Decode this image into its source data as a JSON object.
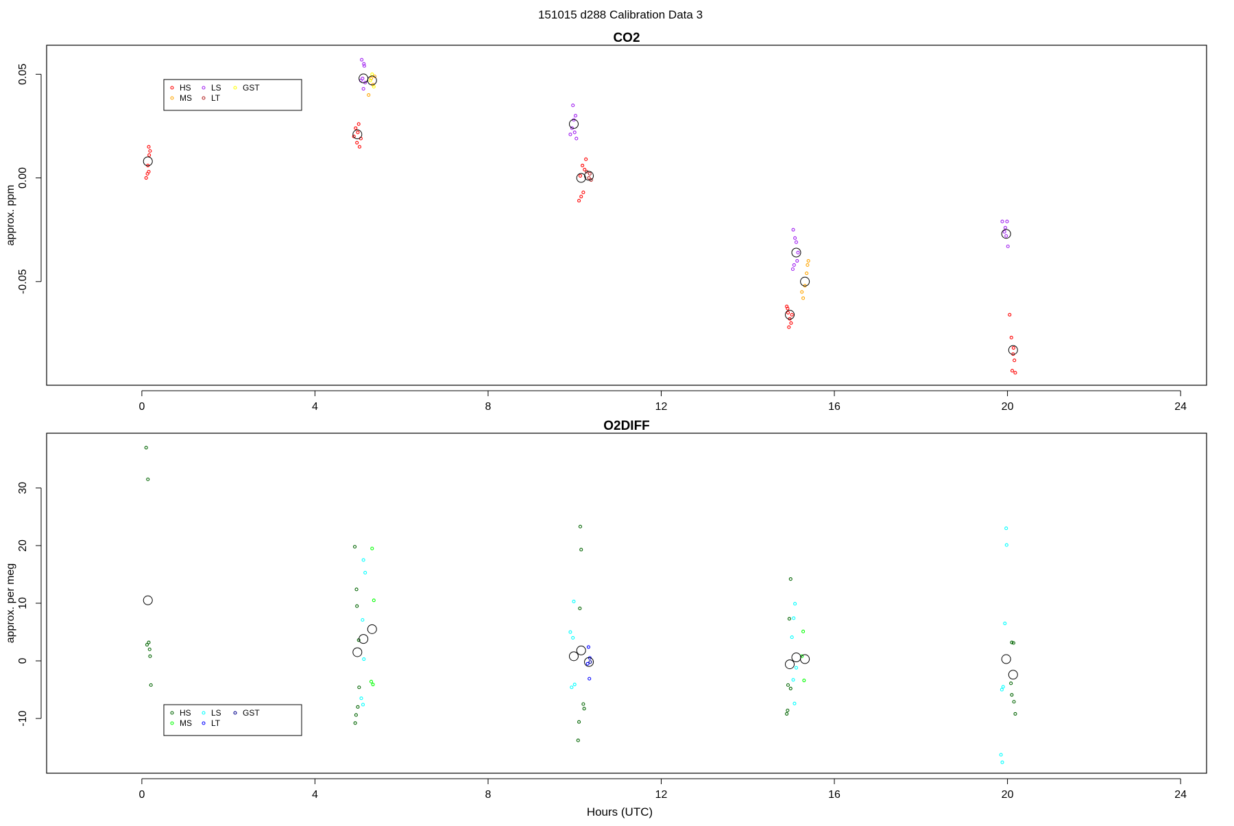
{
  "page_title": "151015   d288   Calibration Data 3",
  "x_axis_label": "Hours (UTC)",
  "chart_data": [
    {
      "type": "scatter",
      "title": "CO2",
      "ylabel": "approx. ppm",
      "xlabel": "",
      "xlim": [
        -2.2,
        24.6
      ],
      "ylim": [
        -0.1,
        0.064
      ],
      "xticks": [
        0,
        4,
        8,
        12,
        16,
        20,
        24
      ],
      "yticks": [
        -0.05,
        0.0,
        0.05
      ],
      "ytick_labels": [
        "-0.05",
        "0.00",
        "0.05"
      ],
      "grid": false,
      "legend_position": "top-left",
      "legend": [
        {
          "label": "HS",
          "color": "#ff0000"
        },
        {
          "label": "MS",
          "color": "#ffa500"
        },
        {
          "label": "LS",
          "color": "#a020f0"
        },
        {
          "label": "LT",
          "color": "#b22222"
        },
        {
          "label": "GST",
          "color": "#ffff00"
        }
      ],
      "series": [
        {
          "name": "HS",
          "color": "#ff0000",
          "points": [
            [
              0.1,
              0.0
            ],
            [
              0.13,
              0.002
            ],
            [
              0.16,
              0.003
            ],
            [
              0.14,
              0.006
            ],
            [
              0.17,
              0.011
            ],
            [
              0.19,
              0.013
            ],
            [
              0.16,
              0.015
            ],
            [
              4.9,
              0.02
            ],
            [
              4.94,
              0.024
            ],
            [
              5.01,
              0.026
            ],
            [
              4.97,
              0.017
            ],
            [
              5.03,
              0.015
            ],
            [
              4.99,
              0.022
            ],
            [
              5.06,
              0.019
            ],
            [
              10.1,
              -0.011
            ],
            [
              10.15,
              -0.009
            ],
            [
              10.2,
              -0.007
            ],
            [
              10.13,
              0.001
            ],
            [
              10.23,
              0.004
            ],
            [
              10.26,
              0.009
            ],
            [
              10.18,
              0.006
            ],
            [
              14.9,
              -0.062
            ],
            [
              14.93,
              -0.065
            ],
            [
              14.97,
              -0.068
            ],
            [
              15.0,
              -0.07
            ],
            [
              14.95,
              -0.072
            ],
            [
              15.02,
              -0.066
            ],
            [
              14.92,
              -0.063
            ],
            [
              20.05,
              -0.066
            ],
            [
              20.09,
              -0.077
            ],
            [
              20.13,
              -0.085
            ],
            [
              20.16,
              -0.088
            ],
            [
              20.11,
              -0.093
            ],
            [
              20.18,
              -0.094
            ],
            [
              20.14,
              -0.082
            ]
          ]
        },
        {
          "name": "MS",
          "color": "#ffa500",
          "points": [
            [
              5.24,
              0.04
            ],
            [
              5.3,
              0.048
            ],
            [
              5.34,
              0.045
            ],
            [
              5.38,
              0.049
            ],
            [
              15.25,
              -0.055
            ],
            [
              15.28,
              -0.058
            ],
            [
              15.32,
              -0.052
            ],
            [
              15.36,
              -0.046
            ],
            [
              15.38,
              -0.042
            ],
            [
              15.4,
              -0.04
            ]
          ]
        },
        {
          "name": "LS",
          "color": "#a020f0",
          "points": [
            [
              5.08,
              0.057
            ],
            [
              5.13,
              0.055
            ],
            [
              5.1,
              0.048
            ],
            [
              5.16,
              0.046
            ],
            [
              5.06,
              0.047
            ],
            [
              5.12,
              0.043
            ],
            [
              5.14,
              0.054
            ],
            [
              9.9,
              0.021
            ],
            [
              9.94,
              0.024
            ],
            [
              9.98,
              0.028
            ],
            [
              10.02,
              0.03
            ],
            [
              9.96,
              0.035
            ],
            [
              10.0,
              0.022
            ],
            [
              10.04,
              0.019
            ],
            [
              15.05,
              -0.025
            ],
            [
              15.09,
              -0.029
            ],
            [
              15.12,
              -0.031
            ],
            [
              15.16,
              -0.036
            ],
            [
              15.07,
              -0.042
            ],
            [
              15.04,
              -0.044
            ],
            [
              15.14,
              -0.04
            ],
            [
              19.88,
              -0.021
            ],
            [
              19.93,
              -0.026
            ],
            [
              19.97,
              -0.028
            ],
            [
              20.01,
              -0.033
            ],
            [
              19.99,
              -0.021
            ],
            [
              19.95,
              -0.024
            ]
          ]
        },
        {
          "name": "LT",
          "color": "#b22222",
          "points": [
            [
              10.28,
              0.003
            ],
            [
              10.33,
              0.0
            ],
            [
              10.38,
              -0.001
            ],
            [
              10.35,
              0.002
            ]
          ]
        },
        {
          "name": "GST",
          "color": "#ffff00",
          "points": [
            [
              5.28,
              0.047
            ],
            [
              5.32,
              0.05
            ],
            [
              5.36,
              0.044
            ]
          ]
        },
        {
          "name": "mean",
          "color": "#000000",
          "marker": "large-circle",
          "points": [
            [
              0.14,
              0.008
            ],
            [
              4.98,
              0.021
            ],
            [
              5.12,
              0.048
            ],
            [
              5.32,
              0.047
            ],
            [
              9.98,
              0.026
            ],
            [
              10.15,
              0.0
            ],
            [
              10.33,
              0.001
            ],
            [
              14.97,
              -0.066
            ],
            [
              15.12,
              -0.036
            ],
            [
              15.32,
              -0.05
            ],
            [
              19.97,
              -0.027
            ],
            [
              20.13,
              -0.083
            ]
          ]
        }
      ]
    },
    {
      "type": "scatter",
      "title": "O2DIFF",
      "ylabel": "approx. per meg",
      "xlabel": "Hours (UTC)",
      "xlim": [
        -2.2,
        24.6
      ],
      "ylim": [
        -19.5,
        39.5
      ],
      "xticks": [
        0,
        4,
        8,
        12,
        16,
        20,
        24
      ],
      "yticks": [
        -10,
        0,
        10,
        20,
        30
      ],
      "ytick_labels": [
        "-10",
        "0",
        "10",
        "20",
        "30"
      ],
      "grid": false,
      "legend_position": "bottom-left",
      "legend": [
        {
          "label": "HS",
          "color": "#006400"
        },
        {
          "label": "MS",
          "color": "#00ff00"
        },
        {
          "label": "LS",
          "color": "#00ffff"
        },
        {
          "label": "LT",
          "color": "#0000ff"
        },
        {
          "label": "GST",
          "color": "#00008b"
        }
      ],
      "series": [
        {
          "name": "HS",
          "color": "#006400",
          "points": [
            [
              0.1,
              37.0
            ],
            [
              0.14,
              31.5
            ],
            [
              0.12,
              2.8
            ],
            [
              0.16,
              3.2
            ],
            [
              0.18,
              2.0
            ],
            [
              0.19,
              0.8
            ],
            [
              0.21,
              -4.2
            ],
            [
              4.92,
              19.8
            ],
            [
              4.96,
              12.4
            ],
            [
              4.97,
              9.5
            ],
            [
              5.01,
              3.6
            ],
            [
              5.02,
              -4.6
            ],
            [
              4.99,
              -8.0
            ],
            [
              4.95,
              -9.4
            ],
            [
              4.93,
              -10.8
            ],
            [
              10.13,
              23.3
            ],
            [
              10.15,
              19.3
            ],
            [
              10.12,
              9.1
            ],
            [
              10.2,
              -7.5
            ],
            [
              10.22,
              -8.3
            ],
            [
              10.1,
              -10.6
            ],
            [
              10.08,
              -13.8
            ],
            [
              14.99,
              14.2
            ],
            [
              14.96,
              7.3
            ],
            [
              14.93,
              -4.2
            ],
            [
              14.99,
              -4.8
            ],
            [
              14.92,
              -8.6
            ],
            [
              14.9,
              -9.2
            ],
            [
              20.1,
              3.2
            ],
            [
              20.14,
              3.1
            ],
            [
              20.08,
              -3.9
            ],
            [
              20.1,
              -5.9
            ],
            [
              20.15,
              -7.1
            ],
            [
              20.18,
              -9.2
            ]
          ]
        },
        {
          "name": "MS",
          "color": "#00ff00",
          "points": [
            [
              5.32,
              19.5
            ],
            [
              5.36,
              10.5
            ],
            [
              5.3,
              -3.6
            ],
            [
              5.34,
              -4.1
            ],
            [
              15.28,
              5.1
            ],
            [
              15.25,
              0.8
            ],
            [
              15.3,
              -3.4
            ]
          ]
        },
        {
          "name": "LS",
          "color": "#00ffff",
          "points": [
            [
              5.12,
              17.5
            ],
            [
              5.16,
              15.3
            ],
            [
              5.1,
              7.1
            ],
            [
              5.13,
              0.3
            ],
            [
              5.07,
              -6.5
            ],
            [
              5.11,
              -7.6
            ],
            [
              9.9,
              5.0
            ],
            [
              9.98,
              10.3
            ],
            [
              9.96,
              4.0
            ],
            [
              10.0,
              -4.1
            ],
            [
              9.93,
              -4.6
            ],
            [
              15.09,
              9.9
            ],
            [
              15.06,
              7.4
            ],
            [
              15.02,
              4.1
            ],
            [
              15.12,
              -1.2
            ],
            [
              15.05,
              -3.3
            ],
            [
              15.08,
              -7.4
            ],
            [
              19.97,
              23.0
            ],
            [
              19.98,
              20.1
            ],
            [
              19.94,
              6.5
            ],
            [
              19.9,
              -4.5
            ],
            [
              19.87,
              -5.0
            ],
            [
              19.85,
              -16.3
            ],
            [
              19.88,
              -17.6
            ]
          ]
        },
        {
          "name": "LT",
          "color": "#0000ff",
          "points": [
            [
              10.32,
              2.4
            ],
            [
              10.35,
              0.5
            ],
            [
              10.3,
              -0.5
            ],
            [
              10.34,
              -3.1
            ]
          ]
        },
        {
          "name": "GST",
          "color": "#00008b",
          "points": [
            [
              10.36,
              -0.2
            ]
          ]
        },
        {
          "name": "mean",
          "color": "#000000",
          "marker": "large-circle",
          "points": [
            [
              0.14,
              10.5
            ],
            [
              4.98,
              1.5
            ],
            [
              5.12,
              3.8
            ],
            [
              5.32,
              5.5
            ],
            [
              9.98,
              0.8
            ],
            [
              10.15,
              1.8
            ],
            [
              10.33,
              -0.2
            ],
            [
              14.97,
              -0.6
            ],
            [
              15.12,
              0.6
            ],
            [
              15.32,
              0.3
            ],
            [
              19.97,
              0.3
            ],
            [
              20.13,
              -2.4
            ]
          ]
        }
      ]
    }
  ]
}
